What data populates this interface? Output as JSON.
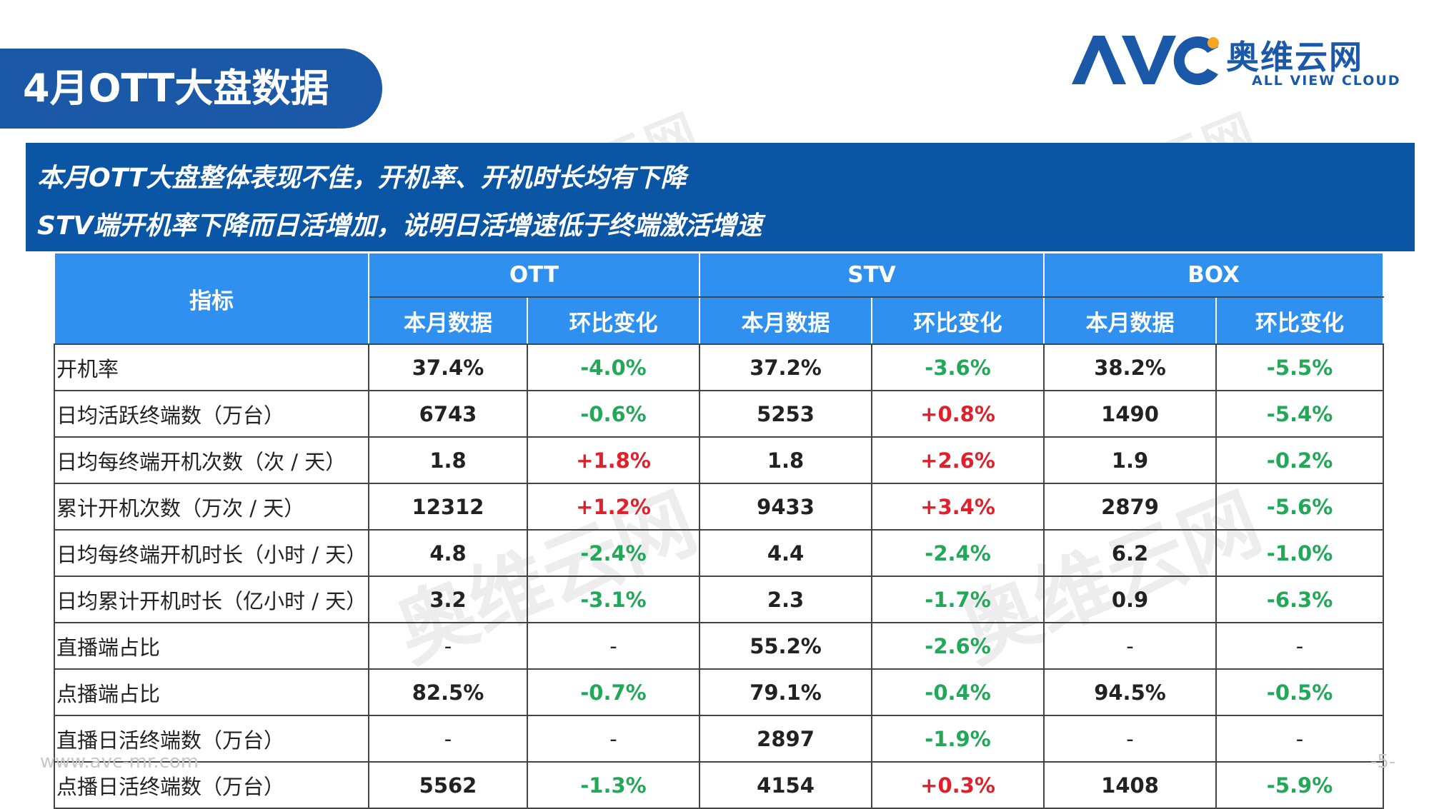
{
  "header": {
    "title": "4月OTT大盘数据"
  },
  "logo": {
    "mark": "AVC",
    "cn": "奥维云网",
    "en": "ALL VIEW CLOUD",
    "brand_color": "#1b59a8"
  },
  "summary": {
    "line1": "本月OTT大盘整体表现不佳，开机率、开机时长均有下降",
    "line2": "STV端开机率下降而日活增加，说明日活增速低于终端激活增速"
  },
  "table": {
    "corner_label": "指标",
    "groups": [
      "OTT",
      "STV",
      "BOX"
    ],
    "sub_headers": [
      "本月数据",
      "环比变化",
      "本月数据",
      "环比变化",
      "本月数据",
      "环比变化"
    ],
    "rows": [
      {
        "label": "开机率",
        "cells": [
          "37.4%",
          "-4.0%",
          "37.2%",
          "-3.6%",
          "38.2%",
          "-5.5%"
        ]
      },
      {
        "label": "日均活跃终端数（万台）",
        "cells": [
          "6743",
          "-0.6%",
          "5253",
          "+0.8%",
          "1490",
          "-5.4%"
        ]
      },
      {
        "label": "日均每终端开机次数（次 / 天）",
        "cells": [
          "1.8",
          "+1.8%",
          "1.8",
          "+2.6%",
          "1.9",
          "-0.2%"
        ]
      },
      {
        "label": "累计开机次数（万次 / 天）",
        "cells": [
          "12312",
          "+1.2%",
          "9433",
          "+3.4%",
          "2879",
          "-5.6%"
        ]
      },
      {
        "label": "日均每终端开机时长（小时 / 天）",
        "cells": [
          "4.8",
          "-2.4%",
          "4.4",
          "-2.4%",
          "6.2",
          "-1.0%"
        ]
      },
      {
        "label": "日均累计开机时长（亿小时 / 天）",
        "cells": [
          "3.2",
          "-3.1%",
          "2.3",
          "-1.7%",
          "0.9",
          "-6.3%"
        ]
      },
      {
        "label": "直播端占比",
        "cells": [
          "-",
          "-",
          "55.2%",
          "-2.6%",
          "-",
          "-"
        ]
      },
      {
        "label": "点播端占比",
        "cells": [
          "82.5%",
          "-0.7%",
          "79.1%",
          "-0.4%",
          "94.5%",
          "-0.5%"
        ]
      },
      {
        "label": "直播日活终端数（万台）",
        "cells": [
          "-",
          "-",
          "2897",
          "-1.9%",
          "-",
          "-"
        ]
      },
      {
        "label": "点播日活终端数（万台）",
        "cells": [
          "5562",
          "-1.3%",
          "4154",
          "+0.3%",
          "1408",
          "-5.9%"
        ]
      }
    ],
    "colors": {
      "header_bg": "#2f90ef",
      "increase": "#e0202a",
      "decrease": "#22a858"
    }
  },
  "footer": {
    "url": "www.avc-mr.com",
    "page": "-5-"
  },
  "watermark": {
    "text": "奥维云网",
    "sub": "ALL VIEW CLOUD"
  }
}
